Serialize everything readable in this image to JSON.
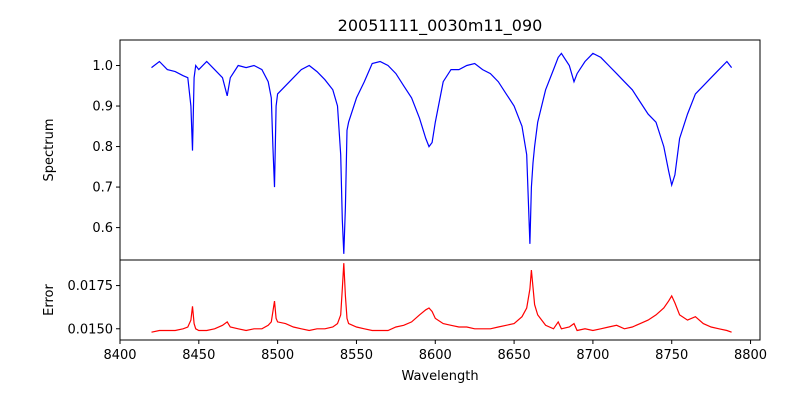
{
  "chart_data": {
    "type": "line",
    "title": "20051111_0030m11_090",
    "xlabel": "Wavelength",
    "xlim": [
      8400,
      8806
    ],
    "xticks": [
      8400,
      8450,
      8500,
      8550,
      8600,
      8650,
      8700,
      8750,
      8800
    ],
    "panels": [
      {
        "ylabel": "Spectrum",
        "ylim": [
          0.52,
          1.063
        ],
        "yticks": [
          0.6,
          0.7,
          0.8,
          0.9,
          1.0
        ],
        "series": [
          {
            "color": "#0000ff",
            "x": [
              8420,
              8425,
              8430,
              8435,
              8440,
              8443,
              8445,
              8446,
              8447,
              8448,
              8450,
              8455,
              8460,
              8465,
              8468,
              8470,
              8475,
              8480,
              8485,
              8490,
              8494,
              8496,
              8497,
              8498,
              8499,
              8500,
              8505,
              8510,
              8515,
              8520,
              8525,
              8530,
              8535,
              8538,
              8540,
              8541,
              8542,
              8543,
              8544,
              8545,
              8550,
              8555,
              8560,
              8565,
              8570,
              8575,
              8580,
              8585,
              8590,
              8594,
              8596,
              8598,
              8600,
              8605,
              8610,
              8615,
              8620,
              8625,
              8630,
              8635,
              8640,
              8645,
              8650,
              8655,
              8658,
              8660,
              8661,
              8662,
              8663,
              8665,
              8670,
              8675,
              8678,
              8680,
              8685,
              8688,
              8690,
              8695,
              8700,
              8705,
              8710,
              8715,
              8720,
              8725,
              8730,
              8735,
              8740,
              8745,
              8748,
              8750,
              8752,
              8755,
              8760,
              8765,
              8770,
              8775,
              8780,
              8785,
              8788
            ],
            "y": [
              0.995,
              1.01,
              0.99,
              0.985,
              0.975,
              0.97,
              0.9,
              0.79,
              0.97,
              1.0,
              0.99,
              1.01,
              0.99,
              0.97,
              0.925,
              0.97,
              1.0,
              0.995,
              1.0,
              0.99,
              0.96,
              0.92,
              0.8,
              0.7,
              0.9,
              0.93,
              0.95,
              0.97,
              0.99,
              1.0,
              0.985,
              0.965,
              0.94,
              0.9,
              0.78,
              0.62,
              0.535,
              0.65,
              0.84,
              0.86,
              0.92,
              0.96,
              1.005,
              1.01,
              1.0,
              0.98,
              0.95,
              0.92,
              0.87,
              0.82,
              0.8,
              0.81,
              0.86,
              0.96,
              0.99,
              0.99,
              1.0,
              1.005,
              0.99,
              0.98,
              0.96,
              0.93,
              0.9,
              0.85,
              0.78,
              0.56,
              0.7,
              0.76,
              0.8,
              0.86,
              0.94,
              0.99,
              1.02,
              1.03,
              1.0,
              0.96,
              0.98,
              1.01,
              1.03,
              1.02,
              1.0,
              0.98,
              0.96,
              0.94,
              0.91,
              0.88,
              0.86,
              0.8,
              0.74,
              0.705,
              0.73,
              0.82,
              0.88,
              0.93,
              0.95,
              0.97,
              0.99,
              1.01,
              0.995
            ]
          }
        ]
      },
      {
        "ylabel": "Error",
        "ylim": [
          0.01435,
          0.01898
        ],
        "yticks": [
          0.015,
          0.0175
        ],
        "ytick_labels": [
          "0.0150",
          "0.0175"
        ],
        "series": [
          {
            "color": "#ff0000",
            "x": [
              8420,
              8425,
              8430,
              8435,
              8440,
              8443,
              8445,
              8446,
              8447,
              8448,
              8450,
              8455,
              8460,
              8465,
              8468,
              8470,
              8475,
              8480,
              8485,
              8490,
              8494,
              8496,
              8497,
              8498,
              8499,
              8500,
              8505,
              8510,
              8515,
              8520,
              8525,
              8530,
              8535,
              8538,
              8540,
              8541,
              8542,
              8543,
              8544,
              8545,
              8550,
              8555,
              8560,
              8565,
              8570,
              8575,
              8580,
              8585,
              8590,
              8594,
              8596,
              8598,
              8600,
              8605,
              8610,
              8615,
              8620,
              8625,
              8630,
              8635,
              8640,
              8645,
              8650,
              8655,
              8658,
              8660,
              8661,
              8662,
              8663,
              8665,
              8670,
              8675,
              8678,
              8680,
              8685,
              8688,
              8690,
              8695,
              8700,
              8705,
              8710,
              8715,
              8720,
              8725,
              8730,
              8735,
              8740,
              8745,
              8748,
              8750,
              8752,
              8755,
              8760,
              8765,
              8770,
              8775,
              8780,
              8785,
              8788
            ],
            "y": [
              0.0148,
              0.0149,
              0.0149,
              0.0149,
              0.015,
              0.0151,
              0.0155,
              0.0163,
              0.0153,
              0.015,
              0.0149,
              0.0149,
              0.015,
              0.0152,
              0.0154,
              0.0151,
              0.015,
              0.0149,
              0.015,
              0.015,
              0.0152,
              0.0154,
              0.016,
              0.0166,
              0.0156,
              0.0154,
              0.0153,
              0.0151,
              0.015,
              0.0149,
              0.015,
              0.015,
              0.0151,
              0.0153,
              0.0158,
              0.0173,
              0.0188,
              0.0169,
              0.0156,
              0.0153,
              0.0151,
              0.015,
              0.0149,
              0.0149,
              0.0149,
              0.0151,
              0.0152,
              0.0154,
              0.0158,
              0.0161,
              0.0162,
              0.016,
              0.0156,
              0.0153,
              0.0152,
              0.0151,
              0.0151,
              0.015,
              0.015,
              0.015,
              0.0151,
              0.0152,
              0.0153,
              0.0157,
              0.0162,
              0.0173,
              0.0184,
              0.0174,
              0.0164,
              0.0158,
              0.0152,
              0.015,
              0.0154,
              0.015,
              0.0151,
              0.0153,
              0.0149,
              0.015,
              0.0149,
              0.015,
              0.0151,
              0.0152,
              0.015,
              0.0151,
              0.0153,
              0.0155,
              0.0158,
              0.0162,
              0.0166,
              0.0169,
              0.0165,
              0.0158,
              0.0155,
              0.0157,
              0.0153,
              0.0151,
              0.015,
              0.0149,
              0.0148
            ]
          }
        ]
      }
    ]
  }
}
